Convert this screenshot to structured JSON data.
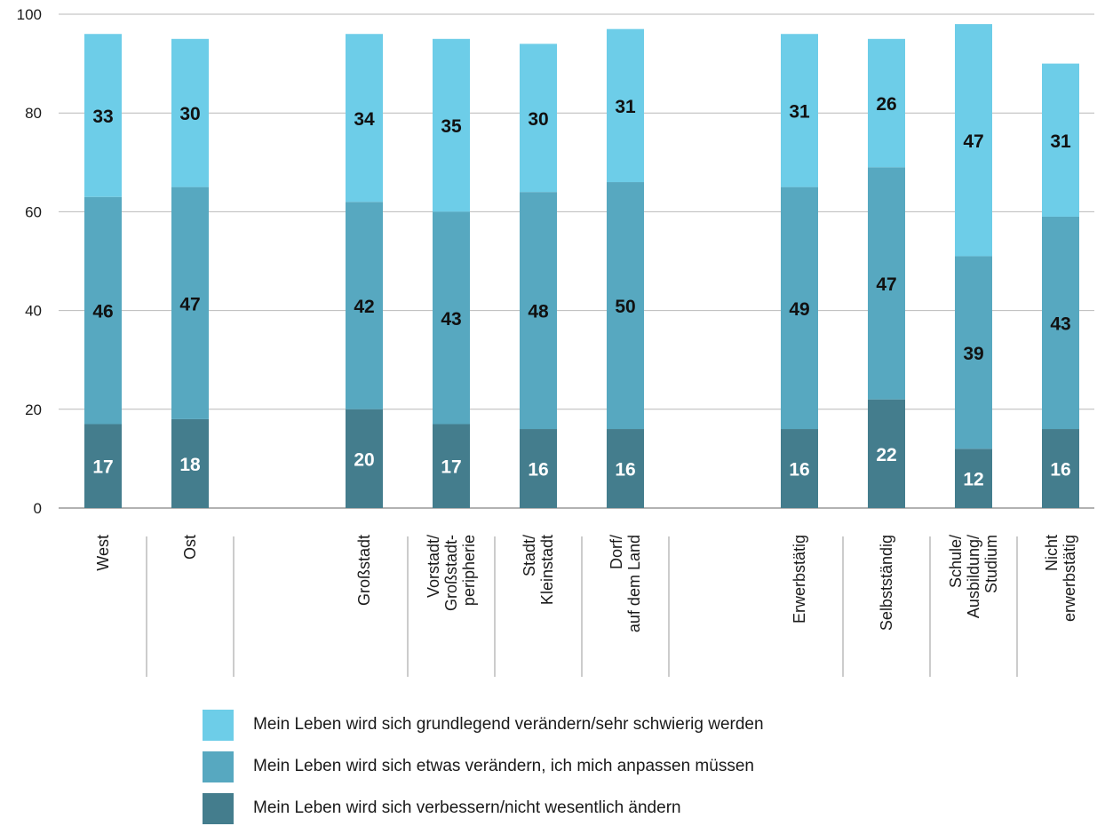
{
  "chart_data": {
    "type": "bar",
    "stacked": true,
    "categories": [
      [
        "West"
      ],
      [
        "Ost"
      ],
      [
        "Großstadt"
      ],
      [
        "Vorstadt/",
        "Großstadt-",
        "peripherie"
      ],
      [
        "Stadt/",
        "Kleinstadt"
      ],
      [
        "Dorf/",
        "auf dem Land"
      ],
      [
        "Erwerbstätig"
      ],
      [
        "Selbstständig"
      ],
      [
        "Schule/",
        "Ausbildung/",
        "Studium"
      ],
      [
        "Nicht",
        "erwerbstätig"
      ]
    ],
    "groups": [
      [
        0,
        1
      ],
      [
        2,
        3,
        4,
        5
      ],
      [
        6,
        7,
        8,
        9
      ]
    ],
    "series": [
      {
        "name": "Mein Leben wird sich verbessern/nicht wesentlich ändern",
        "color": "#447d8d",
        "label_color": "#ffffff",
        "values": [
          17,
          18,
          20,
          17,
          16,
          16,
          16,
          22,
          12,
          16
        ]
      },
      {
        "name": "Mein Leben wird sich etwas verändern, ich mich anpassen müssen",
        "color": "#57a8c0",
        "label_color": "#111111",
        "values": [
          46,
          47,
          42,
          43,
          48,
          50,
          49,
          47,
          39,
          43
        ]
      },
      {
        "name": "Mein Leben wird sich grundlegend verändern/sehr schwierig werden",
        "color": "#6dcde8",
        "label_color": "#111111",
        "values": [
          33,
          30,
          34,
          35,
          30,
          31,
          31,
          26,
          47,
          31
        ]
      }
    ],
    "y_ticks": [
      "0",
      "20",
      "40",
      "60",
      "80",
      "100"
    ],
    "ylim": [
      0,
      100
    ],
    "grid": true,
    "legend_position": "bottom"
  }
}
